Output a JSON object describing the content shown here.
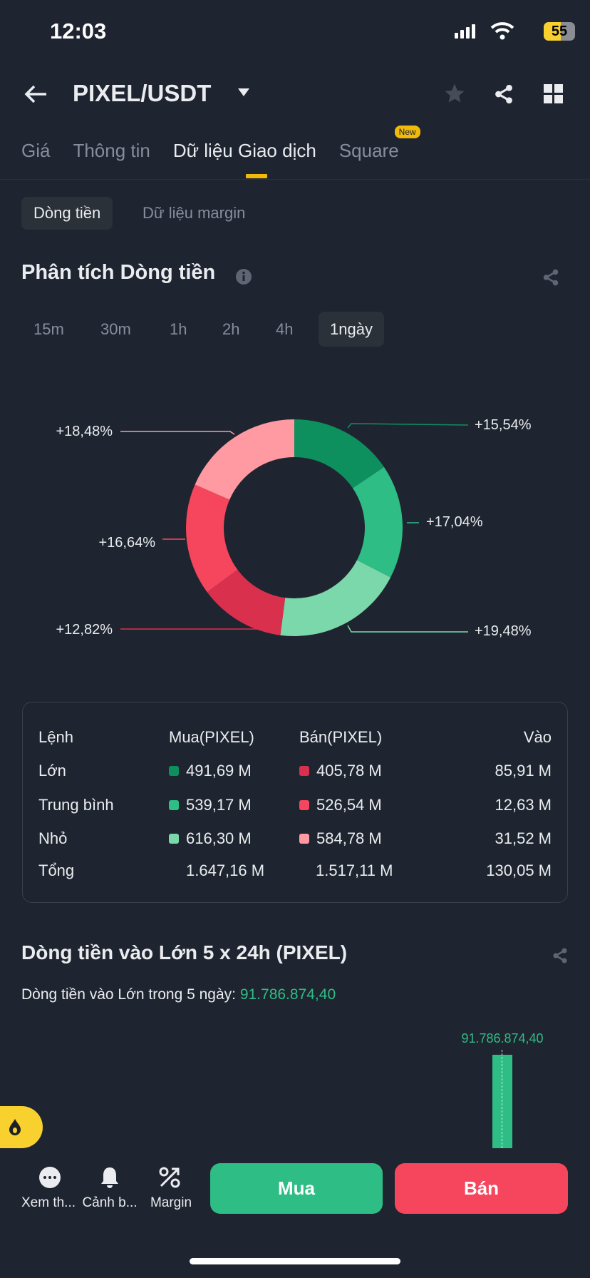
{
  "status_bar": {
    "time": "12:03",
    "battery": "55",
    "battery_level": 55
  },
  "header": {
    "pair": "PIXEL/USDT"
  },
  "tabs": [
    {
      "label": "Giá"
    },
    {
      "label": "Thông tin"
    },
    {
      "label": "Dữ liệu Giao dịch",
      "active": true
    },
    {
      "label": "Square",
      "badge": "New"
    }
  ],
  "subtabs": [
    {
      "label": "Dòng tiền",
      "active": true
    },
    {
      "label": "Dữ liệu margin"
    }
  ],
  "analysis": {
    "title": "Phân tích Dòng tiền",
    "timeframes": [
      "15m",
      "30m",
      "1h",
      "2h",
      "4h",
      "1ngày"
    ],
    "active_timeframe": "1ngày"
  },
  "chart_data": [
    {
      "type": "pie",
      "donut": true,
      "slices": [
        {
          "label": "+15,54%",
          "value": 15.54,
          "color": "#0e8f5e"
        },
        {
          "label": "+17,04%",
          "value": 17.04,
          "color": "#2ebd85"
        },
        {
          "label": "+19,48%",
          "value": 19.48,
          "color": "#7ad8ab"
        },
        {
          "label": "+12,82%",
          "value": 12.82,
          "color": "#d9304e"
        },
        {
          "label": "+16,64%",
          "value": 16.64,
          "color": "#f6465d"
        },
        {
          "label": "+18,48%",
          "value": 18.48,
          "color": "#ff9aa2"
        }
      ]
    },
    {
      "type": "bar",
      "values": [
        91786874.4
      ],
      "labels": [
        "91.786.874,40"
      ],
      "color": "#2ebd85"
    }
  ],
  "table": {
    "headers": [
      "Lệnh",
      "Mua(PIXEL)",
      "Bán(PIXEL)",
      "Vào"
    ],
    "rows": [
      {
        "name": "Lớn",
        "buy": "491,69 M",
        "sell": "405,78 M",
        "net": "85,91 M",
        "buy_color": "#0e8f5e",
        "sell_color": "#d9304e"
      },
      {
        "name": "Trung bình",
        "buy": "539,17 M",
        "sell": "526,54 M",
        "net": "12,63 M",
        "buy_color": "#2ebd85",
        "sell_color": "#f6465d"
      },
      {
        "name": "Nhỏ",
        "buy": "616,30 M",
        "sell": "584,78 M",
        "net": "31,52 M",
        "buy_color": "#7ad8ab",
        "sell_color": "#ff9aa2"
      }
    ],
    "total": {
      "name": "Tổng",
      "buy": "1.647,16 M",
      "sell": "1.517,11 M",
      "net": "130,05 M"
    }
  },
  "large_inflow": {
    "title": "Dòng tiền vào Lớn 5 x 24h (PIXEL)",
    "subtitle": "Dòng tiền vào Lớn trong 5 ngày:",
    "value": "91.786.874,40"
  },
  "bottom_bar": {
    "items": [
      {
        "label": "Xem th...",
        "icon": "more-icon"
      },
      {
        "label": "Cảnh b...",
        "icon": "bell-icon"
      },
      {
        "label": "Margin",
        "icon": "percent-icon"
      }
    ],
    "buy": "Mua",
    "sell": "Bán",
    "buy_color": "#2ebd85",
    "sell_color": "#f6465d"
  }
}
